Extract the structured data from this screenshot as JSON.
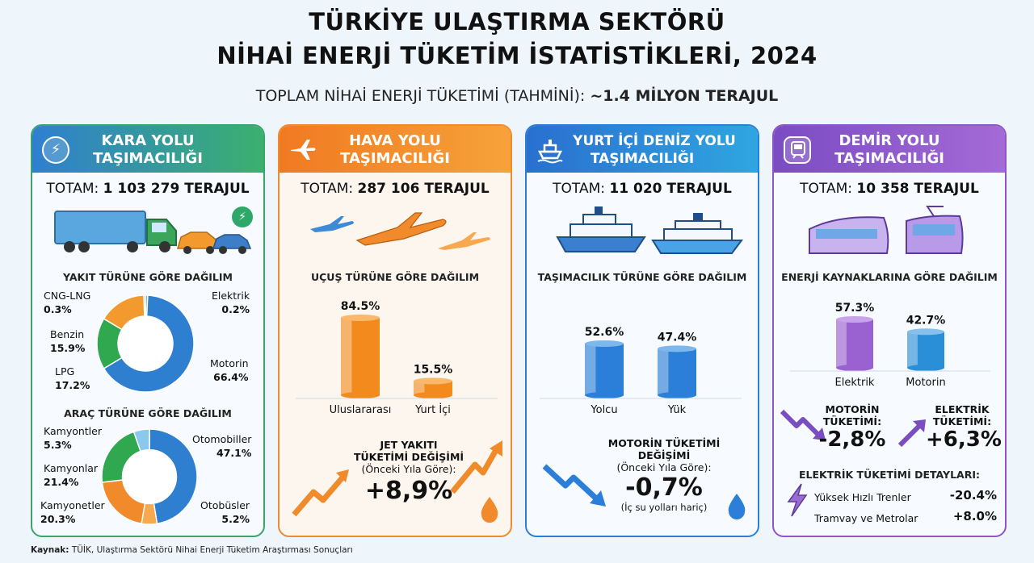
{
  "header": {
    "title_line1": "TÜRKİYE ULAŞTIRMA SEKTÖRÜ",
    "title_line2": "NİHAİ ENERJİ TÜKETİM İSTATİSTİKLERİ, 2024",
    "subtitle_prefix": "TOPLAM NİHAİ ENERJİ TÜKETİMİ (TAHMİNİ): ",
    "subtitle_value": "~1.4 MİLYON TERAJUL"
  },
  "total_prefix": "TOTAM:",
  "colors": {
    "road": "#3e8fd6",
    "air": "#f08a2a",
    "sea": "#2b7fd8",
    "rail": "#8e57c9"
  },
  "road": {
    "title_line1": "KARA YOLU",
    "title_line2": "TAŞIMACILIĞI",
    "icon": "lightning-icon",
    "total": "1 103 279 TERAJUL"
  },
  "air": {
    "title_line1": "HAVA YOLU",
    "title_line2": "TAŞIMACILIĞI",
    "icon": "airplane-icon",
    "total": "287 106 TERAJUL",
    "change_title_line1": "JET YAKITI",
    "change_title_line2": "TÜKETİMİ DEĞİŞİMİ",
    "change_sub": "(Önceki Yıla Göre):",
    "change_value": "+8,9%"
  },
  "sea": {
    "title_line1": "YURT İÇİ DENİZ YOLU",
    "title_line2": "TAŞIMACILIĞI",
    "icon": "ship-icon",
    "total": "11 020 TERAJUL",
    "change_title_line1": "MOTORİN TÜKETİMİ",
    "change_title_line2": "DEĞİŞİMİ",
    "change_sub": "(Önceki Yıla Göre):",
    "change_value": "-0,7%",
    "change_note": "(İç su yolları hariç)"
  },
  "rail": {
    "title_line1": "DEMİR YOLU",
    "title_line2": "TAŞIMACILIĞI",
    "icon": "train-icon",
    "total": "10 358 TERAJUL",
    "motorin_label_line1": "MOTORİN",
    "motorin_label_line2": "TÜKETİMİ:",
    "motorin_value": "-2,8%",
    "elektrik_label_line1": "ELEKTRİK",
    "elektrik_label_line2": "TÜKETİMİ:",
    "elektrik_value": "+6,3%",
    "details_title": "ELEKTRİK TÜKETİMİ DETAYLARI:",
    "details": [
      {
        "label": "Yüksek Hızlı Trenler",
        "value": "-20.4%"
      },
      {
        "label": "Tramvay ve Metrolar",
        "value": "+8.0%"
      }
    ]
  },
  "footer": {
    "source_label": "Kaynak:",
    "source_text": " TÜİK, Ulaştırma Sektörü Nihai Enerji Tüketim Araştırması Sonuçları"
  },
  "chart_data": [
    {
      "type": "pie",
      "title": "YAKIT TÜRÜNE GÖRE DAĞILIM",
      "categories": [
        "Motorin",
        "LPG",
        "Benzin",
        "CNG-LNG",
        "Elektrik"
      ],
      "values": [
        66.4,
        17.2,
        15.9,
        0.3,
        0.2
      ],
      "labels": [
        "66.4%",
        "17.2%",
        "15.9%",
        "0.3%",
        "0.2%"
      ],
      "colors": [
        "#2f7fd0",
        "#2fa84f",
        "#f39a2e",
        "#8cc7ec",
        "#3eb56a"
      ]
    },
    {
      "type": "pie",
      "title": "ARAÇ TÜRÜNE GÖRE DAĞILIM",
      "categories": [
        "Otomobiller",
        "Otobüsler",
        "Kamyonetler",
        "Kamyonlar",
        "Kamyontler"
      ],
      "values": [
        47.1,
        5.2,
        20.3,
        21.4,
        5.3
      ],
      "labels": [
        "47.1%",
        "5.2%",
        "20.3%",
        "21.4%",
        "5.3%"
      ],
      "colors": [
        "#2f7fd0",
        "#f6a94e",
        "#f08a2a",
        "#2fa84f",
        "#8cc7ec"
      ]
    },
    {
      "type": "bar",
      "title": "UÇUŞ TÜRÜNE GÖRE DAĞILIM",
      "categories": [
        "Uluslararası",
        "Yurt İçi"
      ],
      "values": [
        84.5,
        15.5
      ],
      "labels": [
        "84.5%",
        "15.5%"
      ]
    },
    {
      "type": "bar",
      "title": "TAŞIMACILIK TÜRÜNE GÖRE DAĞILIM",
      "categories": [
        "Yolcu",
        "Yük"
      ],
      "values": [
        52.6,
        47.4
      ],
      "labels": [
        "52.6%",
        "47.4%"
      ]
    },
    {
      "type": "bar",
      "title": "ENERJİ KAYNAKLARINA GÖRE DAĞILIM",
      "categories": [
        "Elektrik",
        "Motorin"
      ],
      "values": [
        57.3,
        42.7
      ],
      "labels": [
        "57.3%",
        "42.7%"
      ]
    }
  ]
}
